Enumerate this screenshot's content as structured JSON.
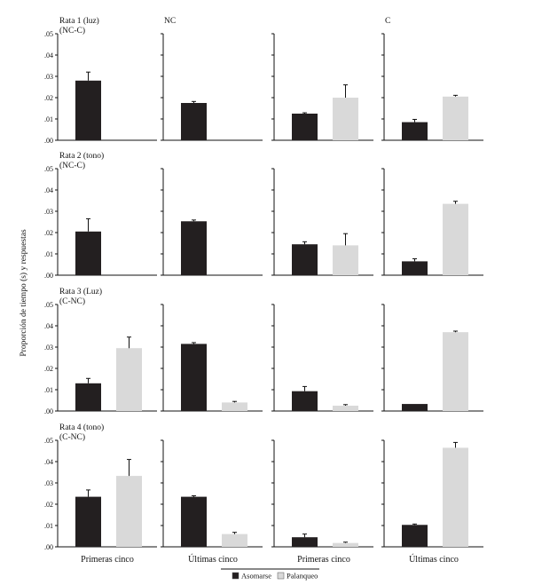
{
  "chart_data": {
    "type": "bar",
    "ylabel": "Proporción de tiempo (s) y respuestas",
    "ylim": [
      0,
      0.05
    ],
    "yticks": [
      ".00",
      ".01",
      ".02",
      ".03",
      ".04",
      ".05"
    ],
    "column_headers": [
      "NC",
      "",
      "C"
    ],
    "column_labels": [
      "Primeras cinco",
      "Últimas cinco",
      "Primeras cinco",
      "Últimas cinco"
    ],
    "legend": [
      {
        "name": "Asomarse",
        "color": "#231f20"
      },
      {
        "name": "Palanqueo",
        "color": "#d9d9d9"
      }
    ],
    "rows": [
      {
        "label_line1": "Rata 1 (luz)",
        "label_line2": "(NC-C)",
        "panels": [
          {
            "Asomarse": 0.028,
            "Asomarse_err": 0.004,
            "Palanqueo": 0.0,
            "Palanqueo_err": 0.0
          },
          {
            "Asomarse": 0.0175,
            "Asomarse_err": 0.0007,
            "Palanqueo": 0.0,
            "Palanqueo_err": 0.0
          },
          {
            "Asomarse": 0.0125,
            "Asomarse_err": 0.0004,
            "Palanqueo": 0.02,
            "Palanqueo_err": 0.006
          },
          {
            "Asomarse": 0.0085,
            "Asomarse_err": 0.0013,
            "Palanqueo": 0.0205,
            "Palanqueo_err": 0.0006
          }
        ]
      },
      {
        "label_line1": "Rata 2 (tono)",
        "label_line2": "(NC-C)",
        "panels": [
          {
            "Asomarse": 0.0205,
            "Asomarse_err": 0.006,
            "Palanqueo": 0.0,
            "Palanqueo_err": 0.0
          },
          {
            "Asomarse": 0.0253,
            "Asomarse_err": 0.0006,
            "Palanqueo": 0.0,
            "Palanqueo_err": 0.0
          },
          {
            "Asomarse": 0.0145,
            "Asomarse_err": 0.0012,
            "Palanqueo": 0.014,
            "Palanqueo_err": 0.0055
          },
          {
            "Asomarse": 0.0065,
            "Asomarse_err": 0.0012,
            "Palanqueo": 0.0335,
            "Palanqueo_err": 0.0012
          }
        ]
      },
      {
        "label_line1": "Rata 3 (Luz)",
        "label_line2": "(C-NC)",
        "panels": [
          {
            "Asomarse": 0.013,
            "Asomarse_err": 0.0023,
            "Palanqueo": 0.0295,
            "Palanqueo_err": 0.0052
          },
          {
            "Asomarse": 0.0315,
            "Asomarse_err": 0.0006,
            "Palanqueo": 0.004,
            "Palanqueo_err": 0.0005
          },
          {
            "Asomarse": 0.0093,
            "Asomarse_err": 0.0022,
            "Palanqueo": 0.0025,
            "Palanqueo_err": 0.0005
          },
          {
            "Asomarse": 0.0033,
            "Asomarse_err": 0.0,
            "Palanqueo": 0.037,
            "Palanqueo_err": 0.0005
          }
        ]
      },
      {
        "label_line1": "Rata 4 (tono)",
        "label_line2": "(C-NC)",
        "panels": [
          {
            "Asomarse": 0.0235,
            "Asomarse_err": 0.0032,
            "Palanqueo": 0.0333,
            "Palanqueo_err": 0.0077
          },
          {
            "Asomarse": 0.0235,
            "Asomarse_err": 0.0005,
            "Palanqueo": 0.006,
            "Palanqueo_err": 0.0008
          },
          {
            "Asomarse": 0.0045,
            "Asomarse_err": 0.0015,
            "Palanqueo": 0.0018,
            "Palanqueo_err": 0.0004
          },
          {
            "Asomarse": 0.0103,
            "Asomarse_err": 0.0004,
            "Palanqueo": 0.0465,
            "Palanqueo_err": 0.0025
          }
        ]
      }
    ]
  }
}
